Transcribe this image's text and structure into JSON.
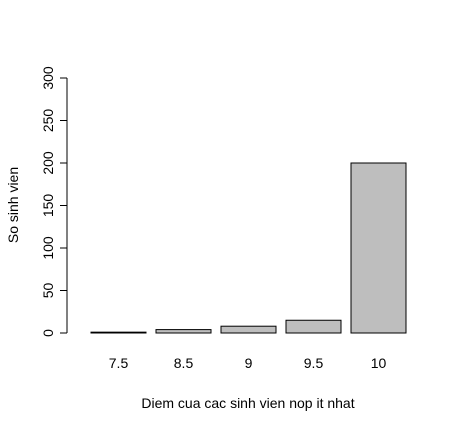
{
  "chart_data": {
    "type": "bar",
    "title": "",
    "categories": [
      "7.5",
      "8.5",
      "9",
      "9.5",
      "10"
    ],
    "values": [
      1,
      4,
      8,
      15,
      200
    ],
    "xlabel": "Diem cua cac sinh vien nop it nhat",
    "ylabel": "So sinh vien",
    "ylim": [
      0,
      300
    ],
    "yticks": [
      "0",
      "50",
      "100",
      "150",
      "200",
      "250",
      "300"
    ],
    "grid": false,
    "colors": {
      "bar_fill": "#bebebe",
      "bar_stroke": "#000000",
      "axis": "#000000",
      "background": "#ffffff"
    }
  }
}
